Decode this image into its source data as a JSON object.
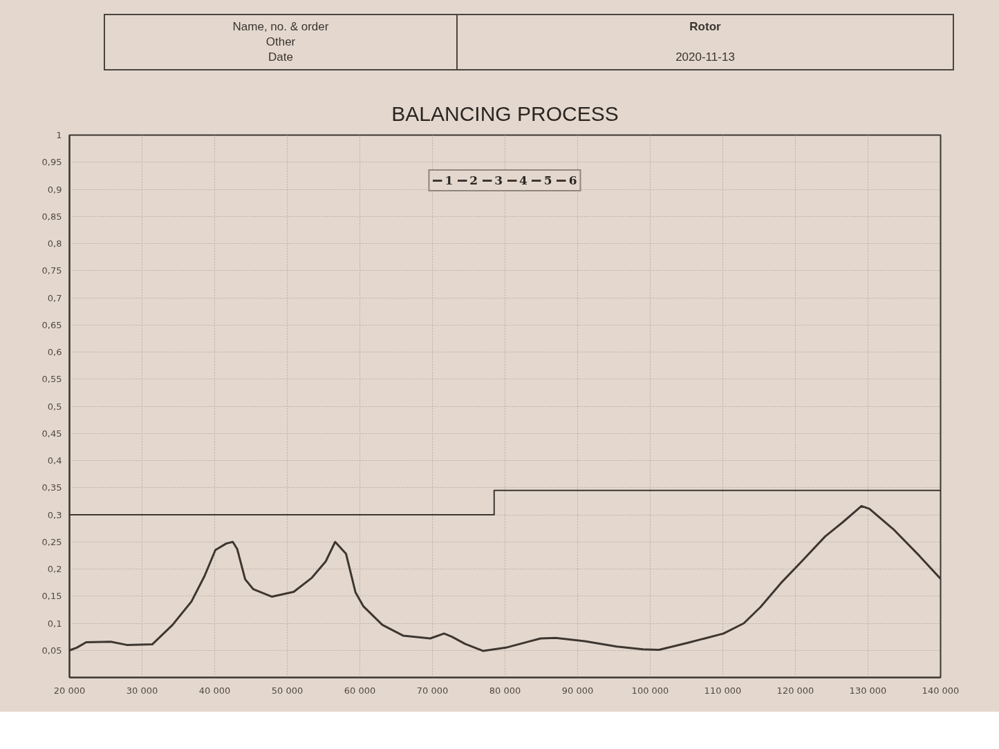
{
  "chart_data": {
    "type": "line",
    "title": "BALANCING PROCESS",
    "annotations": [
      "Name, no. & order",
      "Other",
      "Date",
      "Rotor",
      "2020-11-13"
    ],
    "xlim": [
      20000,
      140000
    ],
    "xticks": [
      {
        "value": 20000,
        "label": "20 000"
      },
      {
        "value": 30000,
        "label": "30 000"
      },
      {
        "value": 40000,
        "label": "40 000"
      },
      {
        "value": 50000,
        "label": "50 000"
      },
      {
        "value": 60000,
        "label": "60 000"
      },
      {
        "value": 70000,
        "label": "70 000"
      },
      {
        "value": 80000,
        "label": "80 000"
      },
      {
        "value": 90000,
        "label": "90 000"
      },
      {
        "value": 100000,
        "label": "100 000"
      },
      {
        "value": 110000,
        "label": "110 000"
      },
      {
        "value": 120000,
        "label": "120 000"
      },
      {
        "value": 130000,
        "label": "130 000"
      },
      {
        "value": 140000,
        "label": "140 000"
      }
    ],
    "ylim": [
      0,
      1
    ],
    "yticks": [
      {
        "value": 0.05,
        "label": "0,05"
      },
      {
        "value": 0.1,
        "label": "0,1"
      },
      {
        "value": 0.15,
        "label": "0,15"
      },
      {
        "value": 0.2,
        "label": "0,2"
      },
      {
        "value": 0.25,
        "label": "0,25"
      },
      {
        "value": 0.3,
        "label": "0,3"
      },
      {
        "value": 0.35,
        "label": "0,35"
      },
      {
        "value": 0.4,
        "label": "0,4"
      },
      {
        "value": 0.45,
        "label": "0,45"
      },
      {
        "value": 0.5,
        "label": "0,5"
      },
      {
        "value": 0.55,
        "label": "0,55"
      },
      {
        "value": 0.6,
        "label": "0,6"
      },
      {
        "value": 0.65,
        "label": "0,65"
      },
      {
        "value": 0.7,
        "label": "0,7"
      },
      {
        "value": 0.75,
        "label": "0,75"
      },
      {
        "value": 0.8,
        "label": "0,8"
      },
      {
        "value": 0.85,
        "label": "0,85"
      },
      {
        "value": 0.9,
        "label": "0,9"
      },
      {
        "value": 0.95,
        "label": "0,95"
      },
      1
    ],
    "grid": true,
    "legend": "top",
    "series": [
      {
        "name": "1",
        "color": "#3d3631",
        "x": [
          20000,
          21000,
          22300,
          25700,
          27900,
          31400,
          34200,
          36800,
          38600,
          40100,
          41600,
          42500,
          43100,
          44200,
          45300,
          47900,
          50900,
          53400,
          55300,
          56600,
          58100,
          59400,
          60500,
          63100,
          66000,
          69700,
          71600,
          72700,
          74500,
          77000,
          80100,
          84900,
          87000,
          91000,
          95400,
          99000,
          101200,
          105200,
          110100,
          112900,
          115200,
          118000,
          120800,
          124100,
          126500,
          129100,
          130200,
          133600,
          137100,
          140000
        ],
        "values": [
          0.05,
          0.055,
          0.065,
          0.066,
          0.06,
          0.061,
          0.097,
          0.14,
          0.187,
          0.235,
          0.247,
          0.25,
          0.237,
          0.181,
          0.163,
          0.149,
          0.158,
          0.184,
          0.214,
          0.25,
          0.228,
          0.157,
          0.131,
          0.097,
          0.077,
          0.072,
          0.081,
          0.075,
          0.062,
          0.049,
          0.055,
          0.072,
          0.073,
          0.067,
          0.057,
          0.052,
          0.051,
          0.064,
          0.081,
          0.1,
          0.13,
          0.174,
          0.213,
          0.26,
          0.286,
          0.316,
          0.311,
          0.272,
          0.224,
          0.182
        ]
      },
      {
        "name": "2",
        "color": "#3d3631"
      },
      {
        "name": "3",
        "color": "#3d3631"
      },
      {
        "name": "4",
        "color": "#3d3631"
      },
      {
        "name": "5",
        "color": "#3d3631"
      },
      {
        "name": "6",
        "color": "#3d3631"
      },
      {
        "type": "step",
        "color": "#3d3631",
        "x": [
          20000,
          78500,
          140000
        ],
        "values": [
          0.3,
          0.345,
          0.345
        ]
      }
    ]
  }
}
